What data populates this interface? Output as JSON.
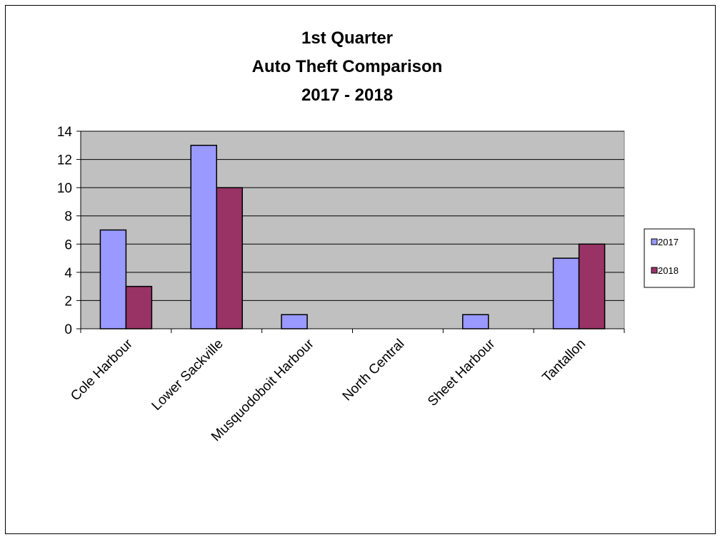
{
  "chart_data": {
    "type": "bar",
    "title": [
      "1st Quarter",
      "Auto Theft Comparison",
      "2017 - 2018"
    ],
    "xlabel": "",
    "ylabel": "",
    "ylim": [
      0,
      14
    ],
    "yticks": [
      "0",
      "2",
      "4",
      "6",
      "8",
      "10",
      "12",
      "14"
    ],
    "grid": true,
    "legend_position": "right",
    "categories": [
      "Cole Harbour",
      "Lower Sackville",
      "Musquodoboit Harbour",
      "North Central",
      "Sheet Harbour",
      "Tantallon"
    ],
    "series": [
      {
        "name": "2017",
        "color": "#9999ff",
        "values": [
          7,
          13,
          1,
          0,
          1,
          5
        ]
      },
      {
        "name": "2018",
        "color": "#993366",
        "values": [
          3,
          10,
          0,
          0,
          0,
          6
        ]
      }
    ],
    "plot_background": "#c0c0c0"
  }
}
